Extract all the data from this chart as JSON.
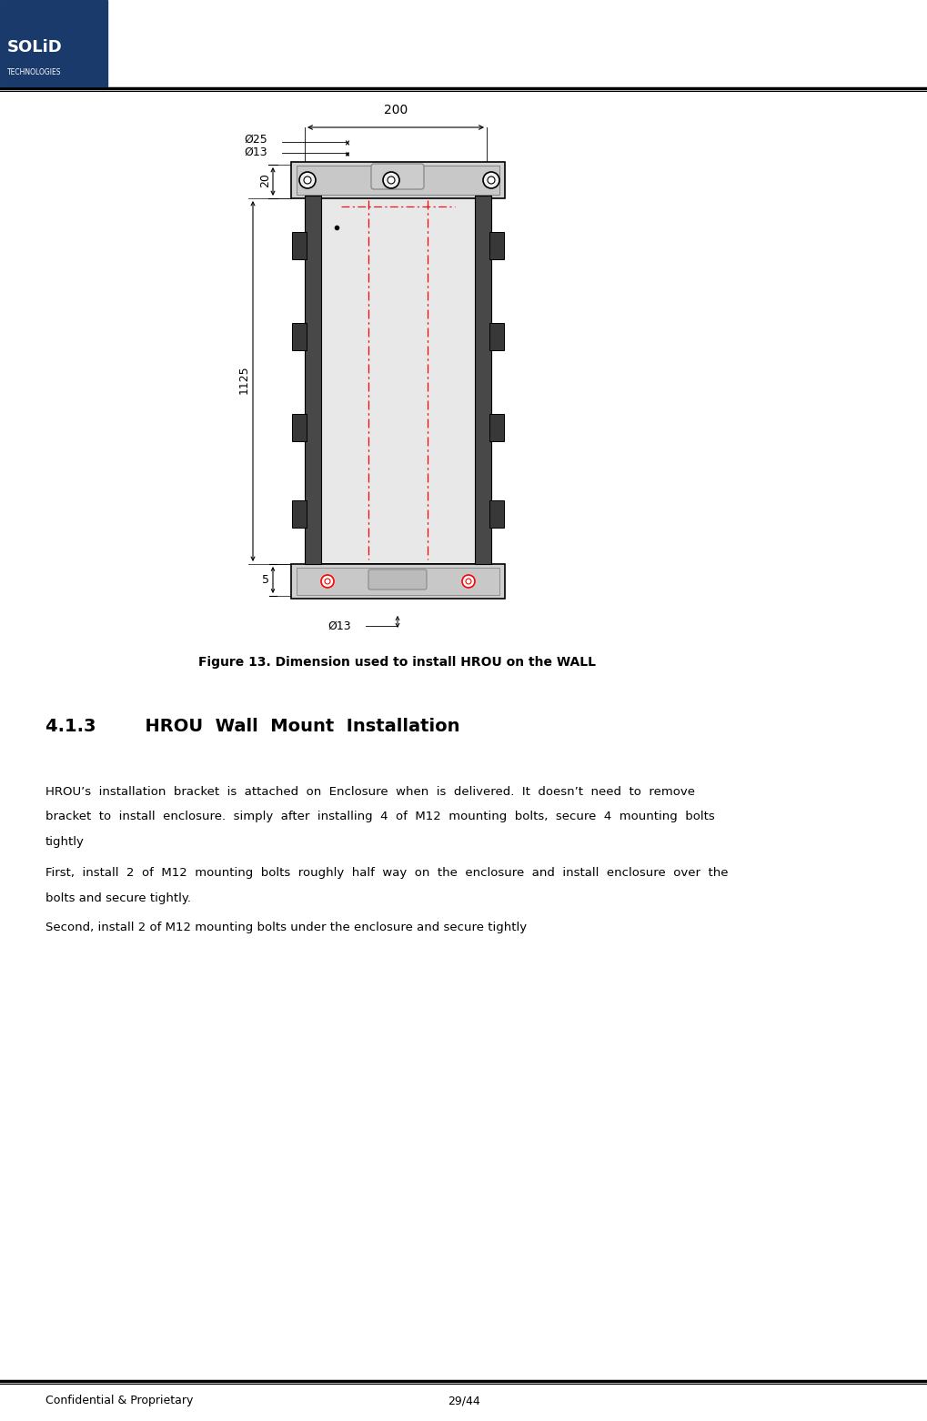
{
  "page_width": 10.2,
  "page_height": 15.62,
  "background_color": "#ffffff",
  "logo_bg_color": "#1a3a6b",
  "logo_text_solid": "SOLiD",
  "logo_text_tech": "TECHNOLOGIES",
  "figure_caption": "Figure 13. Dimension used to install HROU on the WALL",
  "section_title": "4.1.3        HROU  Wall  Mount  Installation",
  "para1_line1": "HROU’s  installation  bracket  is  attached  on  Enclosure  when  is  delivered.  It  doesn’t  need  to  remove",
  "para1_line2": "bracket  to  install  enclosure.  simply  after  installing  4  of  M12  mounting  bolts,  secure  4  mounting  bolts",
  "para1_line3": "tightly",
  "para2_line1": "First,  install  2  of  M12  mounting  bolts  roughly  half  way  on  the  enclosure  and  install  enclosure  over  the",
  "para2_line2": "bolts and secure tightly.",
  "para3_line1": "Second, install 2 of M12 mounting bolts under the enclosure and secure tightly",
  "footer_left": "Confidential & Proprietary",
  "footer_right": "29/44",
  "dim_200": "200",
  "dim_phi25": "Ø25",
  "dim_phi13_top": "Ø13",
  "dim_phi13_bot": "Ø13",
  "dim_20": "20",
  "dim_1125": "1125",
  "dim_5": "5"
}
